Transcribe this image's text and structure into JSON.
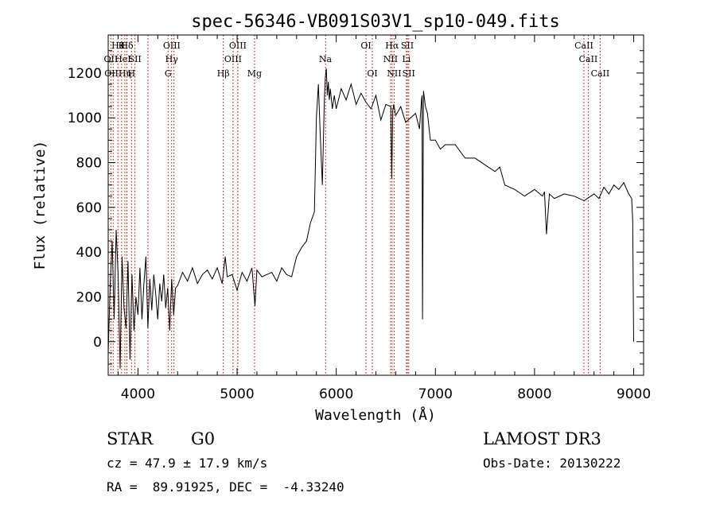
{
  "chart_data": {
    "type": "line",
    "title": "spec-56346-VB091S03V1_sp10-049.fits",
    "xlabel": "Wavelength (Å)",
    "ylabel": "Flux (relative)",
    "xlim": [
      3700,
      9100
    ],
    "ylim": [
      -150,
      1370
    ],
    "grid": false,
    "x_ticks": [
      4000,
      5000,
      6000,
      7000,
      8000,
      9000
    ],
    "y_ticks": [
      0,
      200,
      400,
      600,
      800,
      1000,
      1200
    ],
    "series": [
      {
        "name": "flux",
        "x": [
          3700,
          3720,
          3740,
          3760,
          3780,
          3800,
          3820,
          3840,
          3860,
          3880,
          3900,
          3920,
          3940,
          3960,
          3980,
          4000,
          4020,
          4040,
          4060,
          4080,
          4100,
          4120,
          4140,
          4160,
          4180,
          4200,
          4220,
          4240,
          4260,
          4280,
          4300,
          4320,
          4340,
          4360,
          4380,
          4400,
          4450,
          4500,
          4550,
          4600,
          4650,
          4700,
          4750,
          4800,
          4850,
          4880,
          4900,
          4950,
          5000,
          5050,
          5100,
          5150,
          5180,
          5200,
          5250,
          5300,
          5350,
          5400,
          5450,
          5500,
          5550,
          5600,
          5650,
          5700,
          5740,
          5780,
          5800,
          5820,
          5840,
          5860,
          5880,
          5890,
          5900,
          5910,
          5920,
          5930,
          5940,
          5960,
          5980,
          6000,
          6050,
          6100,
          6150,
          6200,
          6250,
          6300,
          6350,
          6400,
          6450,
          6500,
          6550,
          6560,
          6570,
          6580,
          6600,
          6650,
          6700,
          6750,
          6800,
          6840,
          6860,
          6865,
          6870,
          6880,
          6900,
          6920,
          6950,
          7000,
          7050,
          7100,
          7200,
          7300,
          7400,
          7500,
          7600,
          7650,
          7700,
          7800,
          7900,
          8000,
          8080,
          8100,
          8120,
          8150,
          8200,
          8300,
          8400,
          8500,
          8600,
          8650,
          8700,
          8750,
          8800,
          8850,
          8900,
          8950,
          8980,
          8990,
          9000
        ],
        "y": [
          -50,
          250,
          450,
          100,
          500,
          300,
          -120,
          380,
          150,
          60,
          360,
          -80,
          300,
          50,
          200,
          120,
          330,
          100,
          260,
          380,
          60,
          280,
          140,
          300,
          210,
          100,
          260,
          180,
          300,
          150,
          240,
          50,
          280,
          120,
          240,
          250,
          310,
          270,
          330,
          260,
          300,
          320,
          280,
          330,
          260,
          380,
          290,
          300,
          230,
          310,
          270,
          330,
          160,
          320,
          290,
          300,
          310,
          270,
          330,
          300,
          290,
          380,
          420,
          450,
          530,
          580,
          1000,
          1150,
          910,
          700,
          1080,
          1180,
          1220,
          1100,
          1160,
          1080,
          1130,
          1040,
          1100,
          1040,
          1130,
          1080,
          1150,
          1060,
          1110,
          1070,
          1040,
          1100,
          990,
          1060,
          1050,
          730,
          1030,
          1060,
          1010,
          1050,
          980,
          1000,
          1020,
          950,
          1080,
          1100,
          100,
          1120,
          1050,
          1020,
          900,
          900,
          860,
          880,
          880,
          820,
          820,
          790,
          760,
          780,
          700,
          680,
          650,
          680,
          650,
          670,
          480,
          660,
          640,
          660,
          650,
          630,
          660,
          640,
          690,
          660,
          700,
          680,
          710,
          660,
          640,
          540,
          0
        ]
      }
    ],
    "line_labels": [
      {
        "x": 3798,
        "row": 0,
        "text": "Hθ"
      },
      {
        "x": 3835,
        "row": 0,
        "text": "K"
      },
      {
        "x": 3889,
        "row": 0,
        "text": "Hδ"
      },
      {
        "x": 4341,
        "row": 0,
        "text": "OIII"
      },
      {
        "x": 5007,
        "row": 0,
        "text": "OIII"
      },
      {
        "x": 6300,
        "row": 0,
        "text": "OI"
      },
      {
        "x": 6563,
        "row": 0,
        "text": "Hα"
      },
      {
        "x": 6717,
        "row": 0,
        "text": "SII"
      },
      {
        "x": 8498,
        "row": 0,
        "text": "CaII"
      },
      {
        "x": 3727,
        "row": 1,
        "text": "OII"
      },
      {
        "x": 3847,
        "row": 1,
        "text": "HeI"
      },
      {
        "x": 3970,
        "row": 1,
        "text": "SII"
      },
      {
        "x": 4340,
        "row": 1,
        "text": "Hγ"
      },
      {
        "x": 4959,
        "row": 1,
        "text": "OIII"
      },
      {
        "x": 5890,
        "row": 1,
        "text": "Na"
      },
      {
        "x": 6548,
        "row": 1,
        "text": "NII"
      },
      {
        "x": 6708,
        "row": 1,
        "text": "Li"
      },
      {
        "x": 8542,
        "row": 1,
        "text": "CaII"
      },
      {
        "x": 3750,
        "row": 2,
        "text": "OIII"
      },
      {
        "x": 3868,
        "row": 2,
        "text": "Hη"
      },
      {
        "x": 3935,
        "row": 2,
        "text": "H"
      },
      {
        "x": 4304,
        "row": 2,
        "text": "G"
      },
      {
        "x": 4861,
        "row": 2,
        "text": "Hβ"
      },
      {
        "x": 5176,
        "row": 2,
        "text": "Mg"
      },
      {
        "x": 6364,
        "row": 2,
        "text": "OI"
      },
      {
        "x": 6584,
        "row": 2,
        "text": "NII"
      },
      {
        "x": 6731,
        "row": 2,
        "text": "SII"
      },
      {
        "x": 8662,
        "row": 2,
        "text": "CaII"
      }
    ],
    "line_marks": [
      3727,
      3750,
      3798,
      3835,
      3868,
      3889,
      3935,
      3970,
      4101,
      4304,
      4340,
      4363,
      4861,
      4959,
      5007,
      5176,
      5893,
      6300,
      6364,
      6548,
      6563,
      6584,
      6708,
      6717,
      6731,
      8498,
      8542,
      8662
    ]
  },
  "info": {
    "class": "STAR",
    "subclass": "G0",
    "survey": "LAMOST DR3",
    "cz": "cz = 47.9 ± 17.9 km/s",
    "obs_date": "Obs-Date: 20130222",
    "coords": "RA =  89.91925, DEC =  -4.33240"
  },
  "colors": {
    "spectrum": "#000000",
    "marker": "#c00000",
    "background": "#ffffff"
  }
}
